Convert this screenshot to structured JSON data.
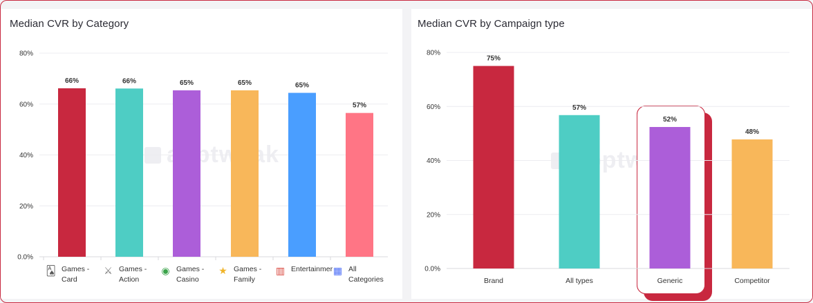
{
  "chart_data": [
    {
      "type": "bar",
      "title": "Median CVR by Category",
      "categories": [
        "Games - Card",
        "Games - Action",
        "Games - Casino",
        "Games - Family",
        "Entertainment",
        "All Categories"
      ],
      "category_display": [
        "Games -\nCard",
        "Games -\nAction",
        "Games -\nCasino",
        "Games -\nFamily",
        "Entertainmer",
        "All\nCategories"
      ],
      "category_icons": [
        "cards-icon",
        "swords-icon",
        "casino-chips-icon",
        "family-stars-icon",
        "popcorn-icon",
        "grid-icon"
      ],
      "values": [
        66,
        66,
        65,
        65,
        65,
        57
      ],
      "value_labels": [
        "66%",
        "66%",
        "65%",
        "65%",
        "65%",
        "57%"
      ],
      "plot_values": [
        66.2,
        66.1,
        65.4,
        65.4,
        64.4,
        56.5
      ],
      "colors": [
        "#c8283f",
        "#4ecdc4",
        "#ac5ed9",
        "#f8b75a",
        "#4a9eff",
        "#ff7585"
      ],
      "ylim": [
        0,
        80
      ],
      "yticks": [
        0,
        20,
        40,
        60,
        80
      ],
      "ytick_labels": [
        "0.0%",
        "20%",
        "40%",
        "60%",
        "80%"
      ],
      "xlabel": "",
      "ylabel": "",
      "grid": true,
      "legend": "none"
    },
    {
      "type": "bar",
      "title": "Median CVR by Campaign type",
      "categories": [
        "Brand",
        "All types",
        "Generic",
        "Competitor"
      ],
      "values": [
        75,
        57,
        52,
        48
      ],
      "value_labels": [
        "75%",
        "57%",
        "52%",
        "48%"
      ],
      "plot_values": [
        75,
        56.8,
        52.4,
        47.8
      ],
      "colors": [
        "#c8283f",
        "#4ecdc4",
        "#ac5ed9",
        "#f8b75a"
      ],
      "ylim": [
        0,
        80
      ],
      "yticks": [
        0,
        20,
        40,
        60,
        80
      ],
      "ytick_labels": [
        "0.0%",
        "20%",
        "40%",
        "60%",
        "80%"
      ],
      "xlabel": "",
      "ylabel": "",
      "grid": true,
      "legend": "none",
      "highlight_category": "Generic",
      "highlight_color": "#c8283f"
    }
  ],
  "watermark": "apptweak"
}
